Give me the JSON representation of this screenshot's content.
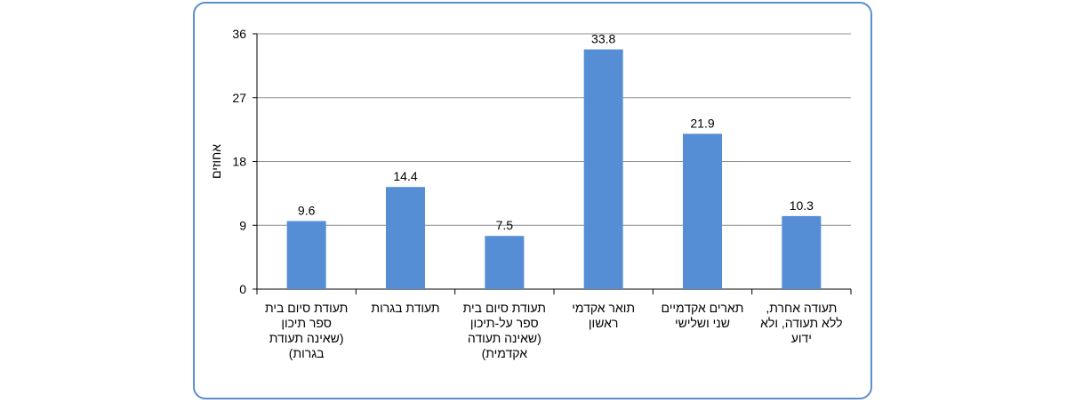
{
  "chart_data": {
    "type": "bar",
    "title": "",
    "xlabel": "",
    "ylabel": "אחוזים",
    "ylim": [
      0,
      36
    ],
    "yticks": [
      0,
      9,
      18,
      27,
      36
    ],
    "grid": true,
    "bar_color": "#558ed5",
    "categories": [
      [
        "תעודת סיום  בית",
        "ספר תיכון",
        "(שאינה תעודת",
        "בגרות)"
      ],
      [
        "תעודת בגרות"
      ],
      [
        "תעודת סיום  בית",
        "ספר על-תיכון",
        "(שאינה תעודה",
        "אקדמית)"
      ],
      [
        "תואר אקדמי",
        "ראשון"
      ],
      [
        "תארים אקדמיים",
        "שני  ושלישי"
      ],
      [
        "תעודה אחרת,",
        "ללא תעודה, ולא",
        "ידוע"
      ]
    ],
    "values": [
      9.6,
      14.4,
      7.5,
      33.8,
      21.9,
      10.3
    ],
    "value_labels": [
      "9.6",
      "14.4",
      "7.5",
      "33.8",
      "21.9",
      "10.3"
    ]
  }
}
